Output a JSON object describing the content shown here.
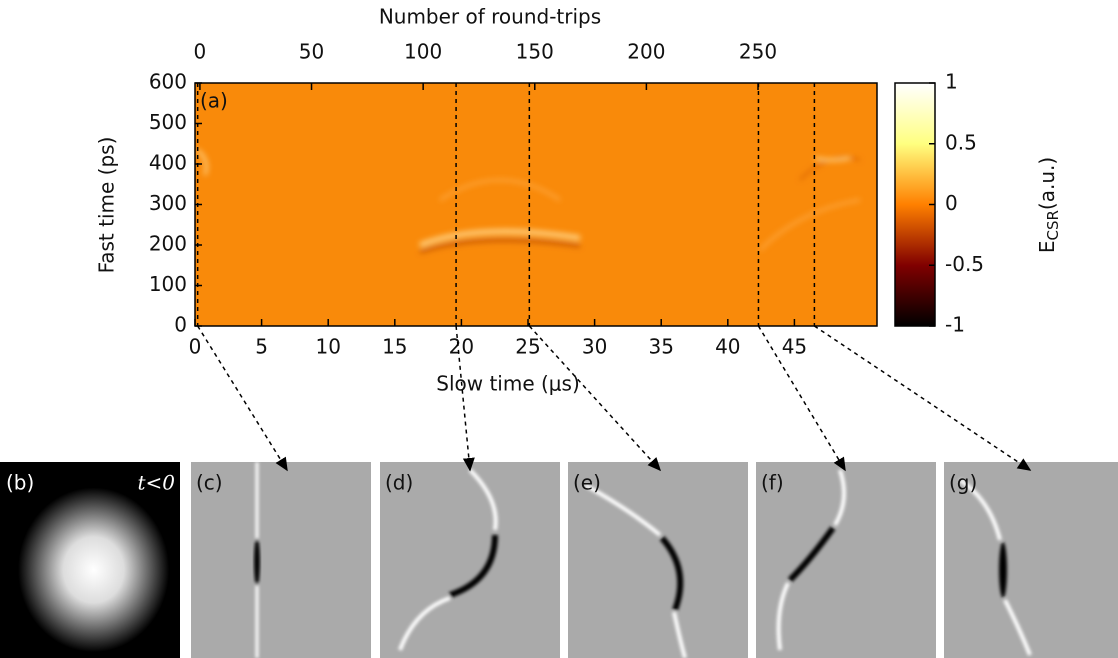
{
  "chart_data": {
    "type": "heatmap",
    "x2label": "Number of round-trips",
    "xlabel": "Slow time (μs)",
    "ylabel": "Fast time (ps)",
    "panel_label": "(a)",
    "colorbar_label": {
      "main": "E",
      "sub": "CSR",
      "unit": "(a.u.)"
    },
    "xlim": [
      0,
      51.2
    ],
    "xticks": [
      0,
      5,
      10,
      15,
      20,
      25,
      30,
      35,
      40,
      45
    ],
    "x2lim": [
      -2.2,
      303.3
    ],
    "x2ticks": [
      0,
      50,
      100,
      150,
      200,
      250
    ],
    "ylim": [
      0,
      600
    ],
    "yticks": [
      0,
      100,
      200,
      300,
      400,
      500,
      600
    ],
    "clim": [
      -1,
      1
    ],
    "cticks": [
      -1,
      -0.5,
      0,
      0.5,
      1
    ],
    "markers": [
      0.2,
      19.6,
      25.1,
      42.3,
      46.5
    ]
  },
  "panels": [
    {
      "label": "(b)",
      "note": "t<0"
    },
    {
      "label": "(c)"
    },
    {
      "label": "(d)"
    },
    {
      "label": "(e)"
    },
    {
      "label": "(f)"
    },
    {
      "label": "(g)"
    }
  ]
}
